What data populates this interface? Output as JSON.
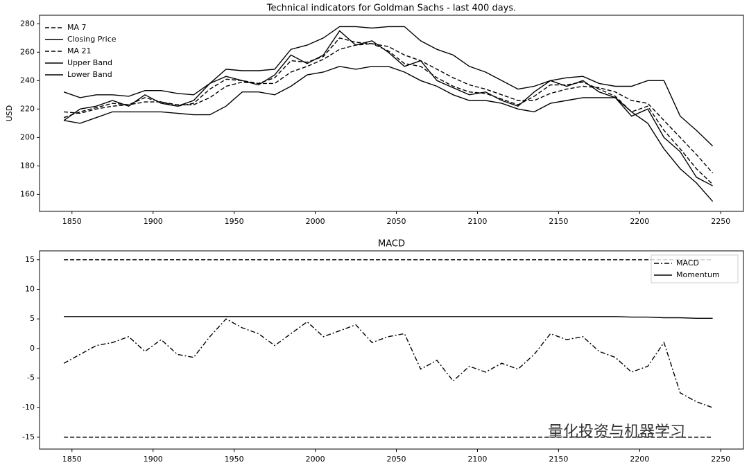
{
  "chart_data": [
    {
      "type": "line",
      "title": "Technical indicators for Goldman Sachs - last 400 days.",
      "y_label": "USD",
      "x": [
        1845,
        1855,
        1865,
        1875,
        1885,
        1895,
        1905,
        1915,
        1925,
        1935,
        1945,
        1955,
        1965,
        1975,
        1985,
        1995,
        2005,
        2015,
        2025,
        2035,
        2045,
        2055,
        2065,
        2075,
        2085,
        2095,
        2105,
        2115,
        2125,
        2135,
        2145,
        2155,
        2165,
        2175,
        2185,
        2195,
        2205,
        2215,
        2225,
        2235,
        2245
      ],
      "series": [
        {
          "name": "MA 7",
          "color": "#000000",
          "style": "dashed",
          "values": [
            214,
            218,
            221,
            224,
            223,
            228,
            225,
            222,
            224,
            234,
            241,
            240,
            238,
            242,
            254,
            253,
            257,
            270,
            267,
            266,
            261,
            252,
            250,
            242,
            236,
            232,
            231,
            227,
            223,
            229,
            237,
            237,
            239,
            234,
            229,
            218,
            222,
            205,
            192,
            178,
            167
          ]
        },
        {
          "name": "Closing Price",
          "color": "#000000",
          "style": "solid",
          "values": [
            212,
            220,
            222,
            226,
            222,
            230,
            224,
            222,
            226,
            238,
            243,
            240,
            237,
            244,
            258,
            252,
            258,
            275,
            265,
            268,
            260,
            250,
            254,
            240,
            235,
            230,
            232,
            226,
            222,
            232,
            240,
            236,
            240,
            232,
            228,
            215,
            220,
            200,
            190,
            172,
            166
          ]
        },
        {
          "name": "MA 21",
          "color": "#000000",
          "style": "dashed",
          "values": [
            218,
            217,
            220,
            222,
            223,
            225,
            225,
            223,
            223,
            228,
            236,
            239,
            238,
            238,
            246,
            250,
            255,
            262,
            265,
            266,
            264,
            258,
            254,
            248,
            242,
            237,
            234,
            230,
            226,
            226,
            231,
            234,
            236,
            235,
            232,
            226,
            224,
            212,
            200,
            188,
            175
          ]
        },
        {
          "name": "Upper Band",
          "color": "#000000",
          "style": "solid",
          "values": [
            232,
            228,
            230,
            230,
            229,
            233,
            233,
            231,
            230,
            238,
            248,
            247,
            247,
            248,
            262,
            265,
            270,
            278,
            278,
            277,
            278,
            278,
            268,
            262,
            258,
            250,
            246,
            240,
            234,
            236,
            240,
            242,
            243,
            238,
            236,
            236,
            240,
            240,
            215,
            205,
            194
          ]
        },
        {
          "name": "Lower Band",
          "color": "#000000",
          "style": "solid",
          "values": [
            212,
            210,
            214,
            218,
            218,
            218,
            218,
            217,
            216,
            216,
            222,
            232,
            232,
            230,
            236,
            244,
            246,
            250,
            248,
            250,
            250,
            246,
            240,
            236,
            230,
            226,
            226,
            224,
            220,
            218,
            224,
            226,
            228,
            228,
            228,
            218,
            210,
            192,
            178,
            168,
            155
          ]
        }
      ],
      "xlim": [
        1830,
        2264
      ],
      "xticks": [
        1850,
        1900,
        1950,
        2000,
        2050,
        2100,
        2150,
        2200,
        2250
      ],
      "ylim": [
        148,
        286
      ],
      "yticks": [
        160,
        180,
        200,
        220,
        240,
        260,
        280
      ],
      "legend": "upper-left"
    },
    {
      "type": "line",
      "title": "MACD",
      "x": [
        1845,
        1855,
        1865,
        1875,
        1885,
        1895,
        1905,
        1915,
        1925,
        1935,
        1945,
        1955,
        1965,
        1975,
        1985,
        1995,
        2005,
        2015,
        2025,
        2035,
        2045,
        2055,
        2065,
        2075,
        2085,
        2095,
        2105,
        2115,
        2125,
        2135,
        2145,
        2155,
        2165,
        2175,
        2185,
        2195,
        2205,
        2215,
        2225,
        2235,
        2245
      ],
      "series": [
        {
          "name": "MACD",
          "color": "#000000",
          "style": "dashdot",
          "values": [
            -2.5,
            -1,
            0.5,
            1,
            2,
            -0.5,
            1.5,
            -1,
            -1.5,
            2,
            5,
            3.5,
            2.5,
            0.5,
            2.5,
            4.5,
            2,
            3,
            4,
            1,
            2,
            2.5,
            -3.5,
            -2,
            -5.5,
            -3,
            -4,
            -2.5,
            -3.5,
            -1,
            2.5,
            1.5,
            2,
            -0.5,
            -1.5,
            -4,
            -3,
            1,
            -7.5,
            -9,
            -10
          ]
        },
        {
          "name": "Momentum",
          "color": "#000000",
          "style": "solid",
          "values": [
            5.4,
            5.4,
            5.4,
            5.4,
            5.4,
            5.4,
            5.4,
            5.4,
            5.4,
            5.4,
            5.4,
            5.4,
            5.4,
            5.4,
            5.4,
            5.4,
            5.4,
            5.4,
            5.4,
            5.4,
            5.4,
            5.4,
            5.4,
            5.4,
            5.4,
            5.4,
            5.4,
            5.4,
            5.4,
            5.4,
            5.4,
            5.4,
            5.4,
            5.4,
            5.4,
            5.3,
            5.3,
            5.2,
            5.2,
            5.1,
            5.1
          ]
        }
      ],
      "hlines": [
        15,
        -15
      ],
      "hline_style": "dashed",
      "xlim": [
        1830,
        2264
      ],
      "xticks": [
        1850,
        1900,
        1950,
        2000,
        2050,
        2100,
        2150,
        2200,
        2250
      ],
      "ylim": [
        -17,
        16.5
      ],
      "yticks": [
        -15,
        -10,
        -5,
        0,
        5,
        10,
        15
      ],
      "legend": "upper-right"
    }
  ],
  "watermark": "量化投资与机器学习"
}
